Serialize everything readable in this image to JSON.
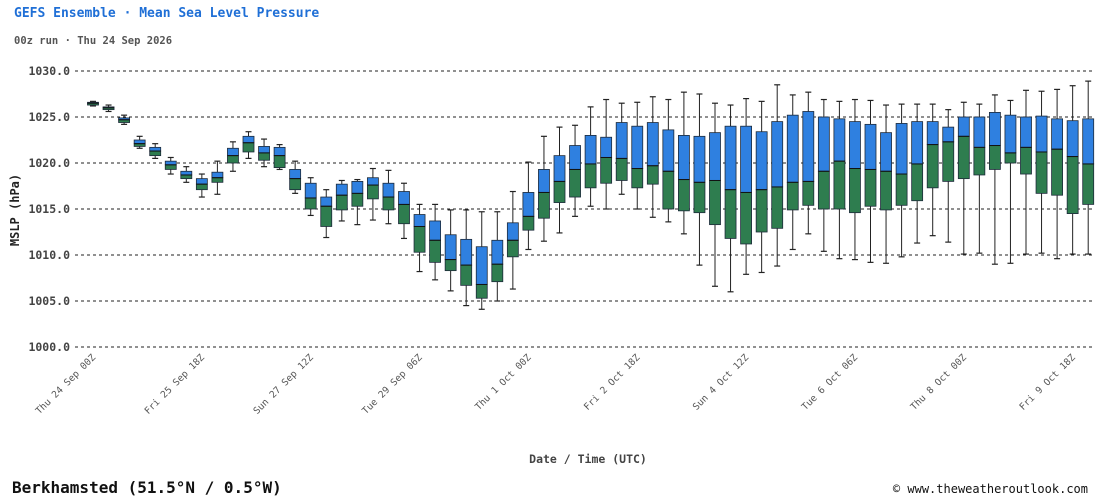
{
  "header": {
    "title": "GEFS Ensemble · Mean Sea Level Pressure",
    "subtitle": "00z run · Thu 24 Sep 2026"
  },
  "footer": {
    "location": "Berkhamsted (51.5°N / 0.5°W)",
    "copyright": "© www.theweatheroutlook.com"
  },
  "colors": {
    "upper_box": "#2f80e0",
    "lower_box": "#2e7d4f",
    "whisker": "#222222",
    "grid": "#222222"
  },
  "chart_data": {
    "type": "boxplot",
    "ylabel": "MSLP (hPa)",
    "xlabel": "Date / Time (UTC)",
    "ylim": [
      1000,
      1030
    ],
    "yticks": [
      "1000.0",
      "1005.0",
      "1010.0",
      "1015.0",
      "1020.0",
      "1025.0",
      "1030.0"
    ],
    "xticks": [
      {
        "index": 0,
        "label": "Thu 24 Sep 00Z"
      },
      {
        "index": 7,
        "label": "Fri 25 Sep 18Z"
      },
      {
        "index": 14,
        "label": "Sun 27 Sep 12Z"
      },
      {
        "index": 21,
        "label": "Tue 29 Sep 06Z"
      },
      {
        "index": 28,
        "label": "Thu 1 Oct 00Z"
      },
      {
        "index": 35,
        "label": "Fri 2 Oct 18Z"
      },
      {
        "index": 42,
        "label": "Sun 4 Oct 12Z"
      },
      {
        "index": 49,
        "label": "Tue 6 Oct 06Z"
      },
      {
        "index": 56,
        "label": "Thu 8 Oct 00Z"
      },
      {
        "index": 63,
        "label": "Fri 9 Oct 18Z"
      }
    ],
    "grid": "horizontal dashed",
    "boxes": [
      {
        "min": 1026.2,
        "q1": 1026.3,
        "median": 1026.5,
        "q3": 1026.6,
        "max": 1026.7
      },
      {
        "min": 1025.6,
        "q1": 1025.8,
        "median": 1026.0,
        "q3": 1026.1,
        "max": 1026.3
      },
      {
        "min": 1024.2,
        "q1": 1024.4,
        "median": 1024.7,
        "q3": 1024.9,
        "max": 1025.2
      },
      {
        "min": 1021.6,
        "q1": 1021.8,
        "median": 1022.1,
        "q3": 1022.5,
        "max": 1022.9
      },
      {
        "min": 1020.5,
        "q1": 1020.8,
        "median": 1021.3,
        "q3": 1021.7,
        "max": 1022.1
      },
      {
        "min": 1018.8,
        "q1": 1019.3,
        "median": 1019.8,
        "q3": 1020.2,
        "max": 1020.6
      },
      {
        "min": 1017.9,
        "q1": 1018.3,
        "median": 1018.7,
        "q3": 1019.1,
        "max": 1019.6
      },
      {
        "min": 1016.3,
        "q1": 1017.1,
        "median": 1017.7,
        "q3": 1018.3,
        "max": 1018.8
      },
      {
        "min": 1016.6,
        "q1": 1017.9,
        "median": 1018.4,
        "q3": 1019.0,
        "max": 1020.2
      },
      {
        "min": 1019.1,
        "q1": 1020.0,
        "median": 1020.8,
        "q3": 1021.6,
        "max": 1022.3
      },
      {
        "min": 1020.5,
        "q1": 1021.2,
        "median": 1022.2,
        "q3": 1022.9,
        "max": 1023.4
      },
      {
        "min": 1019.6,
        "q1": 1020.3,
        "median": 1021.1,
        "q3": 1021.8,
        "max": 1022.6
      },
      {
        "min": 1019.3,
        "q1": 1019.5,
        "median": 1020.8,
        "q3": 1021.7,
        "max": 1022.0
      },
      {
        "min": 1016.7,
        "q1": 1017.1,
        "median": 1018.3,
        "q3": 1019.3,
        "max": 1020.2
      },
      {
        "min": 1014.3,
        "q1": 1015.0,
        "median": 1016.2,
        "q3": 1017.8,
        "max": 1018.4
      },
      {
        "min": 1011.9,
        "q1": 1013.1,
        "median": 1015.3,
        "q3": 1016.3,
        "max": 1017.1
      },
      {
        "min": 1013.7,
        "q1": 1014.9,
        "median": 1016.5,
        "q3": 1017.7,
        "max": 1018.1
      },
      {
        "min": 1013.3,
        "q1": 1015.3,
        "median": 1016.7,
        "q3": 1018.0,
        "max": 1018.2
      },
      {
        "min": 1013.8,
        "q1": 1016.1,
        "median": 1017.6,
        "q3": 1018.4,
        "max": 1019.4
      },
      {
        "min": 1013.4,
        "q1": 1014.9,
        "median": 1016.3,
        "q3": 1017.8,
        "max": 1019.2
      },
      {
        "min": 1011.8,
        "q1": 1013.4,
        "median": 1015.5,
        "q3": 1016.9,
        "max": 1017.8
      },
      {
        "min": 1008.2,
        "q1": 1010.3,
        "median": 1013.1,
        "q3": 1014.4,
        "max": 1015.5
      },
      {
        "min": 1007.3,
        "q1": 1009.2,
        "median": 1011.6,
        "q3": 1013.7,
        "max": 1015.5
      },
      {
        "min": 1006.1,
        "q1": 1008.3,
        "median": 1009.5,
        "q3": 1012.2,
        "max": 1014.9
      },
      {
        "min": 1004.5,
        "q1": 1006.7,
        "median": 1008.9,
        "q3": 1011.7,
        "max": 1014.9
      },
      {
        "min": 1004.1,
        "q1": 1005.3,
        "median": 1006.8,
        "q3": 1010.9,
        "max": 1014.7
      },
      {
        "min": 1005.0,
        "q1": 1007.1,
        "median": 1009.0,
        "q3": 1011.6,
        "max": 1014.7
      },
      {
        "min": 1006.3,
        "q1": 1009.8,
        "median": 1011.6,
        "q3": 1013.5,
        "max": 1016.9
      },
      {
        "min": 1010.6,
        "q1": 1012.7,
        "median": 1014.2,
        "q3": 1016.8,
        "max": 1020.1
      },
      {
        "min": 1011.5,
        "q1": 1014.0,
        "median": 1016.8,
        "q3": 1019.3,
        "max": 1022.9
      },
      {
        "min": 1012.4,
        "q1": 1015.7,
        "median": 1018.0,
        "q3": 1020.8,
        "max": 1023.9
      },
      {
        "min": 1014.2,
        "q1": 1016.3,
        "median": 1019.3,
        "q3": 1021.9,
        "max": 1024.1
      },
      {
        "min": 1015.3,
        "q1": 1017.3,
        "median": 1019.9,
        "q3": 1023.0,
        "max": 1026.1
      },
      {
        "min": 1015.0,
        "q1": 1017.8,
        "median": 1020.6,
        "q3": 1022.8,
        "max": 1026.9
      },
      {
        "min": 1016.6,
        "q1": 1018.1,
        "median": 1020.5,
        "q3": 1024.4,
        "max": 1026.5
      },
      {
        "min": 1015.0,
        "q1": 1017.3,
        "median": 1019.4,
        "q3": 1024.0,
        "max": 1026.6
      },
      {
        "min": 1014.1,
        "q1": 1017.7,
        "median": 1019.7,
        "q3": 1024.4,
        "max": 1027.2
      },
      {
        "min": 1013.6,
        "q1": 1015.0,
        "median": 1019.1,
        "q3": 1023.6,
        "max": 1026.9
      },
      {
        "min": 1012.3,
        "q1": 1014.8,
        "median": 1018.2,
        "q3": 1023.0,
        "max": 1027.7
      },
      {
        "min": 1008.9,
        "q1": 1014.6,
        "median": 1017.9,
        "q3": 1022.9,
        "max": 1027.5
      },
      {
        "min": 1006.6,
        "q1": 1013.3,
        "median": 1018.1,
        "q3": 1023.3,
        "max": 1026.5
      },
      {
        "min": 1006.0,
        "q1": 1011.8,
        "median": 1017.1,
        "q3": 1024.0,
        "max": 1026.3
      },
      {
        "min": 1007.9,
        "q1": 1011.2,
        "median": 1016.8,
        "q3": 1024.0,
        "max": 1027.0
      },
      {
        "min": 1008.1,
        "q1": 1012.5,
        "median": 1017.1,
        "q3": 1023.4,
        "max": 1026.7
      },
      {
        "min": 1008.8,
        "q1": 1012.9,
        "median": 1017.4,
        "q3": 1024.5,
        "max": 1028.5
      },
      {
        "min": 1010.6,
        "q1": 1014.9,
        "median": 1017.9,
        "q3": 1025.2,
        "max": 1027.4
      },
      {
        "min": 1012.3,
        "q1": 1015.4,
        "median": 1018.0,
        "q3": 1025.6,
        "max": 1027.7
      },
      {
        "min": 1010.4,
        "q1": 1015.0,
        "median": 1019.1,
        "q3": 1025.0,
        "max": 1026.9
      },
      {
        "min": 1009.6,
        "q1": 1015.0,
        "median": 1020.2,
        "q3": 1024.8,
        "max": 1026.7
      },
      {
        "min": 1009.5,
        "q1": 1014.6,
        "median": 1019.4,
        "q3": 1024.5,
        "max": 1026.9
      },
      {
        "min": 1009.2,
        "q1": 1015.3,
        "median": 1019.3,
        "q3": 1024.2,
        "max": 1026.8
      },
      {
        "min": 1009.1,
        "q1": 1014.9,
        "median": 1019.1,
        "q3": 1023.3,
        "max": 1026.3
      },
      {
        "min": 1009.8,
        "q1": 1015.4,
        "median": 1018.8,
        "q3": 1024.3,
        "max": 1026.4
      },
      {
        "min": 1011.3,
        "q1": 1015.9,
        "median": 1019.9,
        "q3": 1024.5,
        "max": 1026.4
      },
      {
        "min": 1012.1,
        "q1": 1017.3,
        "median": 1022.0,
        "q3": 1024.5,
        "max": 1026.4
      },
      {
        "min": 1011.4,
        "q1": 1018.0,
        "median": 1022.3,
        "q3": 1023.9,
        "max": 1025.8
      },
      {
        "min": 1010.1,
        "q1": 1018.3,
        "median": 1022.9,
        "q3": 1025.0,
        "max": 1026.6
      },
      {
        "min": 1010.2,
        "q1": 1018.7,
        "median": 1021.7,
        "q3": 1025.0,
        "max": 1026.4
      },
      {
        "min": 1009.0,
        "q1": 1019.3,
        "median": 1021.9,
        "q3": 1025.5,
        "max": 1027.4
      },
      {
        "min": 1009.1,
        "q1": 1020.0,
        "median": 1021.1,
        "q3": 1025.2,
        "max": 1026.8
      },
      {
        "min": 1010.1,
        "q1": 1018.8,
        "median": 1021.7,
        "q3": 1025.0,
        "max": 1027.9
      },
      {
        "min": 1010.2,
        "q1": 1016.7,
        "median": 1021.2,
        "q3": 1025.1,
        "max": 1027.8
      },
      {
        "min": 1009.6,
        "q1": 1016.5,
        "median": 1021.5,
        "q3": 1024.8,
        "max": 1028.0
      },
      {
        "min": 1010.1,
        "q1": 1014.5,
        "median": 1020.7,
        "q3": 1024.6,
        "max": 1028.4
      },
      {
        "min": 1010.1,
        "q1": 1015.5,
        "median": 1019.9,
        "q3": 1024.8,
        "max": 1028.9
      }
    ]
  }
}
